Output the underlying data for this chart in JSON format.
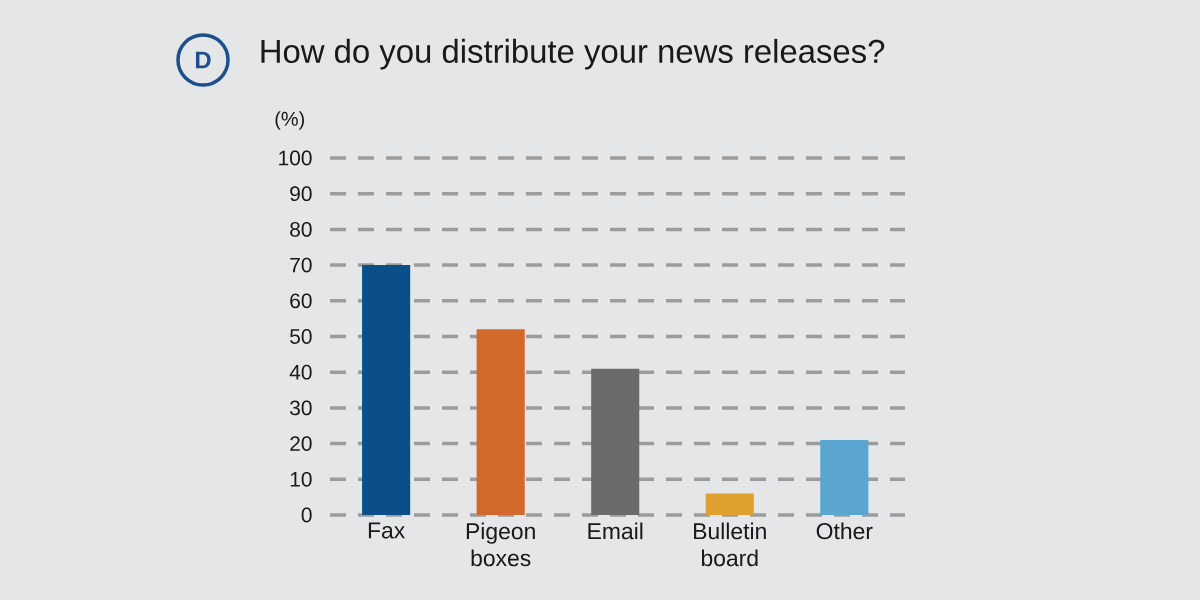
{
  "chart_data": {
    "type": "bar",
    "title": "How do you distribute your news releases?",
    "ylabel": "(%)",
    "annotations": [
      "D"
    ],
    "categories": [
      "Fax",
      "Pigeon boxes",
      "Email",
      "Bulletin board",
      "Other"
    ],
    "values": [
      70,
      52,
      41,
      6,
      21
    ],
    "colors": [
      "#0b4f8a",
      "#d2692a",
      "#6b6b6b",
      "#e0a030",
      "#5aa6d0"
    ],
    "ylim": [
      0,
      100
    ],
    "yticks": [
      0,
      10,
      20,
      30,
      40,
      50,
      60,
      70,
      80,
      90,
      100
    ],
    "grid": "y"
  }
}
